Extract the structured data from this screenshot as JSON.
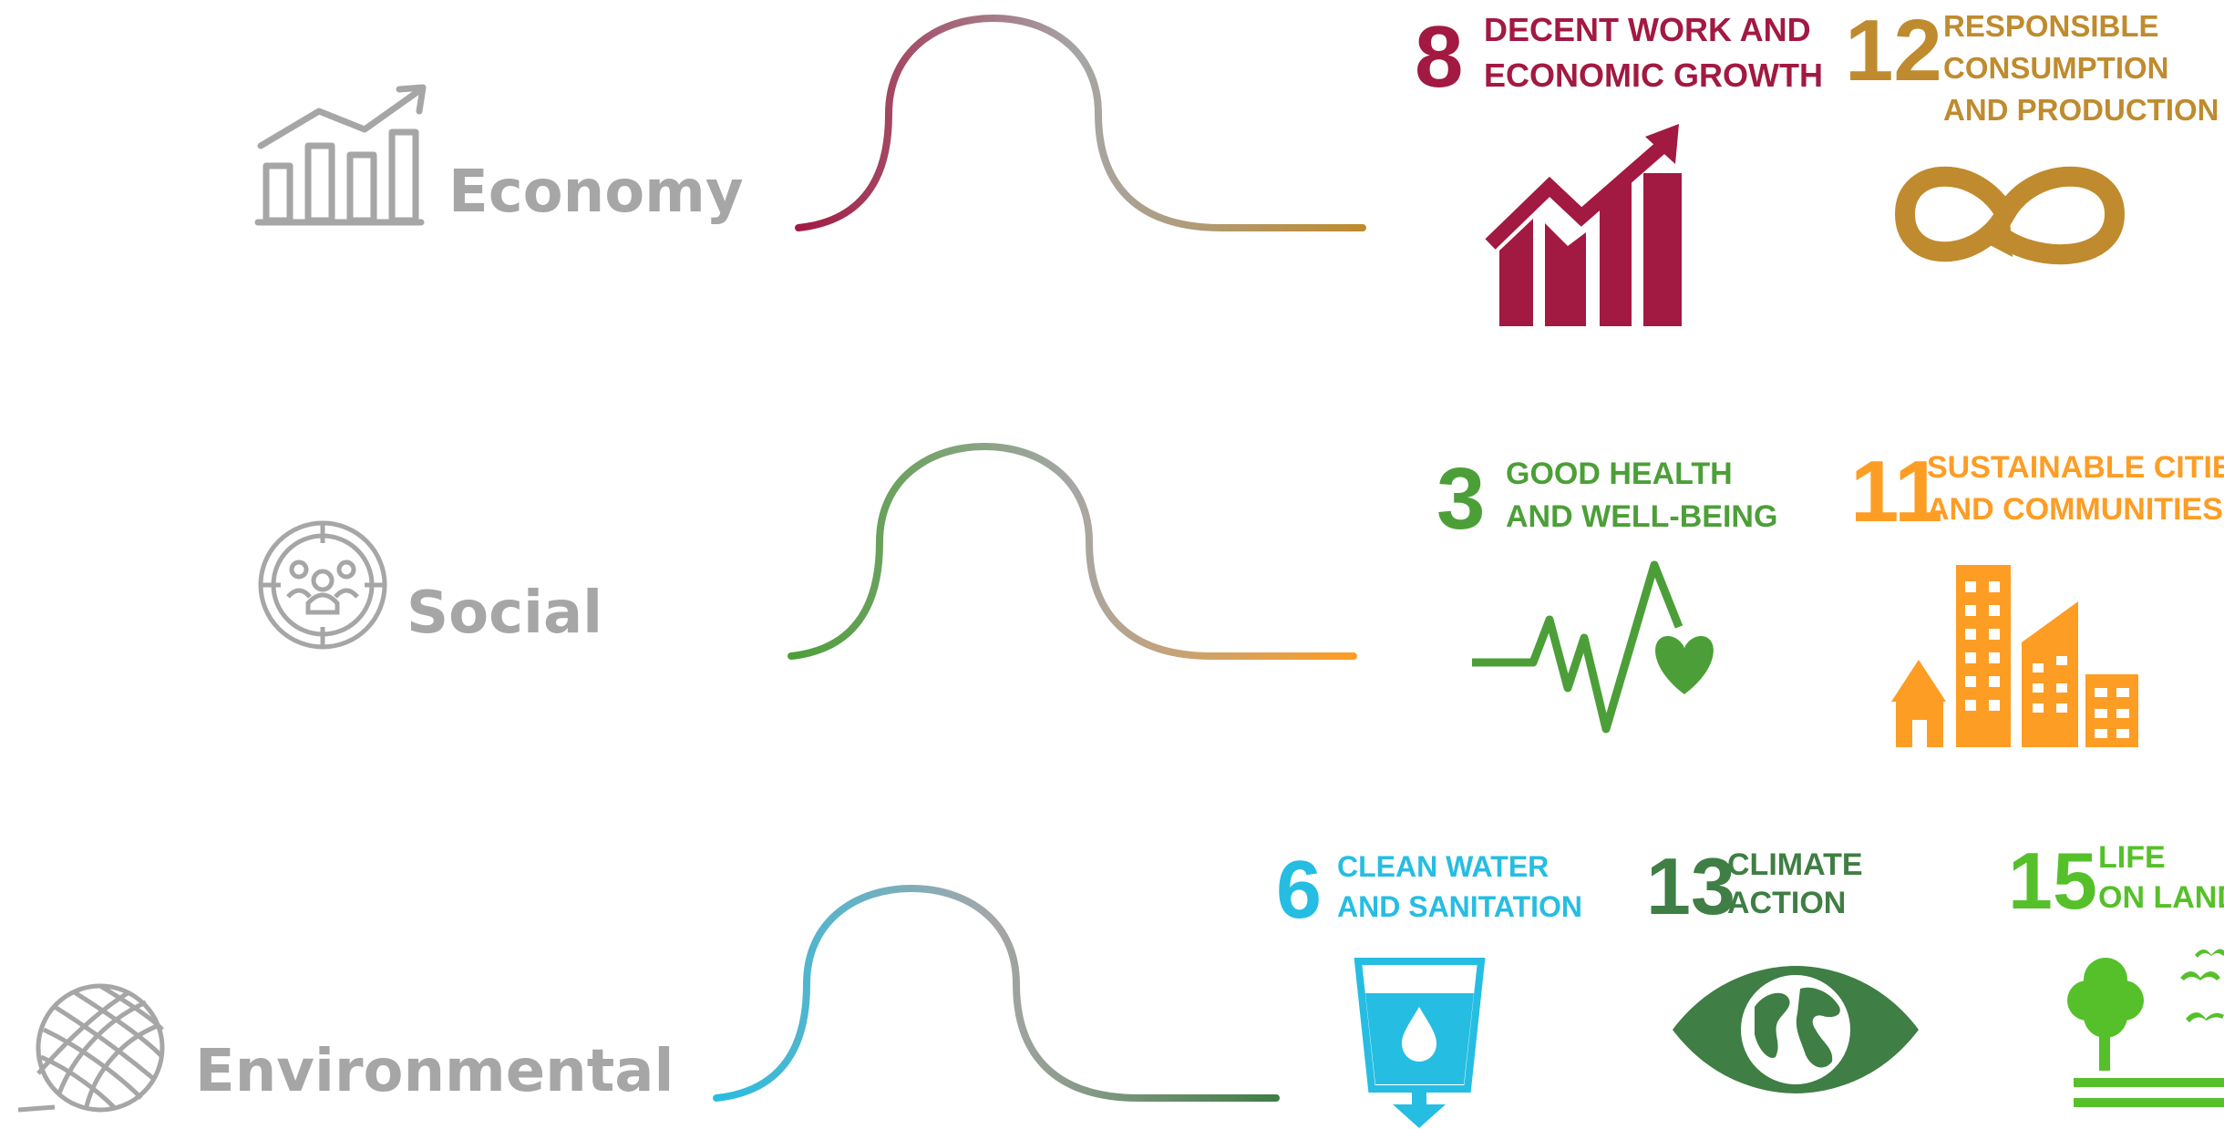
{
  "categories": [
    {
      "id": "economy",
      "label": "Economy",
      "icon": "bar-chart-growth-icon",
      "curve_colors": [
        "#a21942",
        "#bf8b2e"
      ],
      "goals": [
        {
          "number": "8",
          "lines": [
            "DECENT WORK AND",
            "ECONOMIC GROWTH"
          ],
          "color": "#a21942",
          "icon": "growth-chart-icon"
        },
        {
          "number": "12",
          "lines": [
            "RESPONSIBLE",
            "CONSUMPTION",
            "AND PRODUCTION"
          ],
          "color": "#bf8b2e",
          "icon": "infinity-loop-icon"
        }
      ]
    },
    {
      "id": "social",
      "label": "Social",
      "icon": "community-people-icon",
      "curve_colors": [
        "#4c9f38",
        "#fd9d24"
      ],
      "goals": [
        {
          "number": "3",
          "lines": [
            "GOOD HEALTH",
            "AND WELL-BEING"
          ],
          "color": "#4c9f38",
          "icon": "heartbeat-icon"
        },
        {
          "number": "11",
          "lines": [
            "SUSTAINABLE CITIES",
            "AND COMMUNITIES"
          ],
          "color": "#fd9d24",
          "icon": "city-buildings-icon"
        }
      ]
    },
    {
      "id": "environmental",
      "label": "Environmental",
      "icon": "yarn-ball-icon",
      "curve_colors": [
        "#26bde2",
        "#3f7e44"
      ],
      "goals": [
        {
          "number": "6",
          "lines": [
            "CLEAN WATER",
            "AND SANITATION"
          ],
          "color": "#26bde2",
          "icon": "water-glass-icon"
        },
        {
          "number": "13",
          "lines": [
            "CLIMATE",
            "ACTION"
          ],
          "color": "#3f7e44",
          "icon": "earth-eye-icon"
        },
        {
          "number": "15",
          "lines": [
            "LIFE",
            "ON LAND"
          ],
          "color": "#56c02b",
          "icon": "tree-birds-icon"
        }
      ]
    }
  ]
}
